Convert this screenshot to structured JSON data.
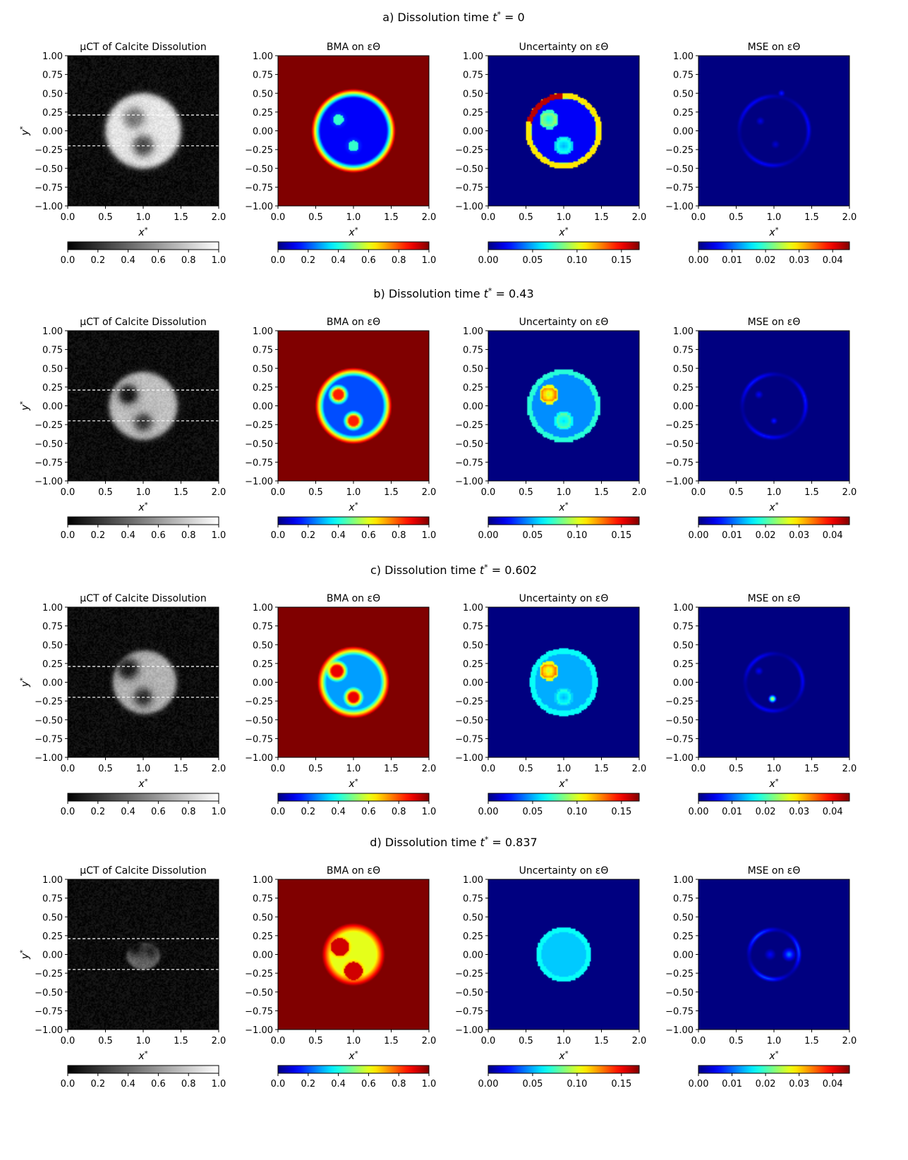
{
  "figure": {
    "rows": [
      {
        "title_prefix": "a) Dissolution time ",
        "t_value": "0",
        "mct": {
          "blobs": [
            [
              0.88,
              0.17,
              0.13,
              0.45
            ],
            [
              1.0,
              -0.2,
              0.13,
              0.28
            ]
          ],
          "outer": [
            1.0,
            0.0,
            0.5,
            0.5,
            0.9
          ]
        },
        "bma": {
          "blobs": [
            [
              0.8,
              0.15,
              0.09
            ],
            [
              1.0,
              -0.2,
              0.09
            ]
          ],
          "outer_r": 0.5,
          "level": 0.12,
          "inner": 0.18
        },
        "unc": {
          "outer_r": 0.5,
          "bg": 0.0,
          "interior": 0.02,
          "ring": 0.11,
          "hot_arc": true,
          "blobs": [
            [
              0.8,
              0.15,
              0.1,
              0.09
            ],
            [
              1.0,
              -0.2,
              0.1,
              0.07
            ]
          ]
        },
        "mse": {
          "outer_r": 0.5,
          "arcs": [
            [
              1.0,
              0.0,
              0.46,
              0.006
            ]
          ],
          "blobs": [
            [
              0.82,
              0.13,
              0.06,
              0.005
            ],
            [
              1.02,
              -0.18,
              0.06,
              0.004
            ],
            [
              1.1,
              0.5,
              0.05,
              0.008
            ]
          ]
        }
      },
      {
        "title_prefix": "b) Dissolution time ",
        "t_value": "0.43",
        "mct": {
          "blobs": [
            [
              0.8,
              0.15,
              0.12,
              0.05
            ],
            [
              1.0,
              -0.22,
              0.11,
              0.2
            ]
          ],
          "outer": [
            1.0,
            0.0,
            0.45,
            0.45,
            0.75
          ]
        },
        "bma": {
          "blobs": [
            [
              0.8,
              0.15,
              0.1
            ],
            [
              1.0,
              -0.2,
              0.1
            ]
          ],
          "outer_r": 0.45,
          "level": 0.2,
          "inner": 0.78
        },
        "unc": {
          "outer_r": 0.48,
          "bg": 0.0,
          "interior": 0.045,
          "ring": 0.07,
          "hot_arc": false,
          "blobs": [
            [
              0.8,
              0.15,
              0.1,
              0.13
            ],
            [
              1.0,
              -0.2,
              0.1,
              0.08
            ]
          ]
        },
        "mse": {
          "outer_r": 0.45,
          "arcs": [
            [
              1.0,
              0.0,
              0.42,
              0.007
            ]
          ],
          "blobs": [
            [
              0.8,
              0.15,
              0.06,
              0.006
            ],
            [
              1.0,
              -0.2,
              0.05,
              0.008
            ]
          ]
        }
      },
      {
        "title_prefix": "c) Dissolution time ",
        "t_value": "0.602",
        "mct": {
          "blobs": [
            [
              0.8,
              0.18,
              0.13,
              0.1
            ],
            [
              1.0,
              -0.2,
              0.11,
              0.15
            ]
          ],
          "outer": [
            1.02,
            0.0,
            0.42,
            0.42,
            0.7
          ]
        },
        "bma": {
          "blobs": [
            [
              0.78,
              0.15,
              0.11
            ],
            [
              1.0,
              -0.2,
              0.1
            ]
          ],
          "outer_r": 0.42,
          "level": 0.28,
          "inner": 0.85
        },
        "unc": {
          "outer_r": 0.45,
          "bg": 0.0,
          "interior": 0.05,
          "ring": 0.065,
          "hot_arc": false,
          "blobs": [
            [
              0.8,
              0.15,
              0.1,
              0.13
            ],
            [
              1.0,
              -0.2,
              0.1,
              0.07
            ]
          ]
        },
        "mse": {
          "outer_r": 0.4,
          "arcs": [
            [
              1.0,
              0.0,
              0.38,
              0.006
            ]
          ],
          "blobs": [
            [
              0.98,
              -0.22,
              0.06,
              0.03
            ],
            [
              0.8,
              0.15,
              0.06,
              0.006
            ]
          ]
        }
      },
      {
        "title_prefix": "d) Dissolution time ",
        "t_value": "0.837",
        "mct": {
          "blobs": [
            [
              0.9,
              0.1,
              0.1,
              0.05
            ],
            [
              1.1,
              0.05,
              0.08,
              0.12
            ]
          ],
          "outer": [
            1.0,
            -0.02,
            0.22,
            0.18,
            0.4
          ]
        },
        "bma": {
          "blobs": [
            [
              0.82,
              0.1,
              0.12
            ],
            [
              1.0,
              -0.22,
              0.12
            ]
          ],
          "outer_r": 0.36,
          "level": 0.6,
          "inner": 0.78
        },
        "unc": {
          "outer_r": 0.36,
          "bg": 0.0,
          "interior": 0.055,
          "ring": 0.065,
          "hot_arc": false,
          "blobs": [
            [
              1.0,
              -0.2,
              0.1,
              0.04
            ]
          ]
        },
        "mse": {
          "outer_r": 0.36,
          "arcs": [
            [
              1.0,
              0.0,
              0.33,
              0.01
            ]
          ],
          "blobs": [
            [
              1.2,
              0.0,
              0.1,
              0.012
            ],
            [
              0.95,
              0.0,
              0.08,
              0.006
            ]
          ]
        }
      }
    ]
  },
  "chart_data": [
    {
      "type": "heatmap",
      "row": "a",
      "panels": [
        {
          "title": "μCT of Calcite Dissolution",
          "xlabel": "x*",
          "ylabel": "y*",
          "xlim": [
            0,
            2
          ],
          "ylim": [
            -1,
            1
          ],
          "colormap": "gray",
          "clim": [
            0,
            1
          ],
          "colorbar_ticks": [
            "0.0",
            "0.2",
            "0.4",
            "0.6",
            "0.8",
            "1.0"
          ],
          "dashed_lines_y": [
            0.21,
            -0.2
          ]
        },
        {
          "title": "BMA on εΘ",
          "xlabel": "x*",
          "xlim": [
            0,
            2
          ],
          "ylim": [
            -1,
            1
          ],
          "colormap": "jet",
          "clim": [
            0,
            1
          ],
          "colorbar_ticks": [
            "0.0",
            "0.2",
            "0.4",
            "0.6",
            "0.8",
            "1.0"
          ]
        },
        {
          "title": "Uncertainty on εΘ",
          "xlabel": "x*",
          "xlim": [
            0,
            2
          ],
          "ylim": [
            -1,
            1
          ],
          "colormap": "jet",
          "clim": [
            0,
            0.17
          ],
          "colorbar_ticks": [
            "0.00",
            "0.05",
            "0.10",
            "0.15"
          ]
        },
        {
          "title": "MSE on εΘ",
          "xlabel": "x*",
          "xlim": [
            0,
            2
          ],
          "ylim": [
            -1,
            1
          ],
          "colormap": "jet",
          "clim": [
            0,
            0.045
          ],
          "colorbar_ticks": [
            "0.00",
            "0.01",
            "0.02",
            "0.03",
            "0.04"
          ]
        }
      ]
    },
    {
      "type": "heatmap",
      "row": "b",
      "panels": [
        {
          "title": "μCT of Calcite Dissolution",
          "xlabel": "x*",
          "ylabel": "y*",
          "xlim": [
            0,
            2
          ],
          "ylim": [
            -1,
            1
          ],
          "colormap": "gray",
          "clim": [
            0,
            1
          ],
          "colorbar_ticks": [
            "0.0",
            "0.2",
            "0.4",
            "0.6",
            "0.8",
            "1.0"
          ],
          "dashed_lines_y": [
            0.21,
            -0.2
          ]
        },
        {
          "title": "BMA on εΘ",
          "xlabel": "x*",
          "xlim": [
            0,
            2
          ],
          "ylim": [
            -1,
            1
          ],
          "colormap": "jet",
          "clim": [
            0,
            1
          ],
          "colorbar_ticks": [
            "0.0",
            "0.2",
            "0.4",
            "0.6",
            "0.8",
            "1.0"
          ]
        },
        {
          "title": "Uncertainty on εΘ",
          "xlabel": "x*",
          "xlim": [
            0,
            2
          ],
          "ylim": [
            -1,
            1
          ],
          "colormap": "jet",
          "clim": [
            0,
            0.17
          ],
          "colorbar_ticks": [
            "0.00",
            "0.05",
            "0.10",
            "0.15"
          ]
        },
        {
          "title": "MSE on εΘ",
          "xlabel": "x*",
          "xlim": [
            0,
            2
          ],
          "ylim": [
            -1,
            1
          ],
          "colormap": "jet",
          "clim": [
            0,
            0.045
          ],
          "colorbar_ticks": [
            "0.00",
            "0.01",
            "0.02",
            "0.03",
            "0.04"
          ]
        }
      ]
    },
    {
      "type": "heatmap",
      "row": "c",
      "panels": [
        {
          "title": "μCT of Calcite Dissolution",
          "xlabel": "x*",
          "ylabel": "y*",
          "xlim": [
            0,
            2
          ],
          "ylim": [
            -1,
            1
          ],
          "colormap": "gray",
          "clim": [
            0,
            1
          ],
          "colorbar_ticks": [
            "0.0",
            "0.2",
            "0.4",
            "0.6",
            "0.8",
            "1.0"
          ],
          "dashed_lines_y": [
            0.21,
            -0.2
          ]
        },
        {
          "title": "BMA on εΘ",
          "xlabel": "x*",
          "xlim": [
            0,
            2
          ],
          "ylim": [
            -1,
            1
          ],
          "colormap": "jet",
          "clim": [
            0,
            1
          ],
          "colorbar_ticks": [
            "0.0",
            "0.2",
            "0.4",
            "0.6",
            "0.8",
            "1.0"
          ]
        },
        {
          "title": "Uncertainty on εΘ",
          "xlabel": "x*",
          "xlim": [
            0,
            2
          ],
          "ylim": [
            -1,
            1
          ],
          "colormap": "jet",
          "clim": [
            0,
            0.17
          ],
          "colorbar_ticks": [
            "0.00",
            "0.05",
            "0.10",
            "0.15"
          ]
        },
        {
          "title": "MSE on εΘ",
          "xlabel": "x*",
          "xlim": [
            0,
            2
          ],
          "ylim": [
            -1,
            1
          ],
          "colormap": "jet",
          "clim": [
            0,
            0.045
          ],
          "colorbar_ticks": [
            "0.00",
            "0.01",
            "0.02",
            "0.03",
            "0.04"
          ]
        }
      ]
    },
    {
      "type": "heatmap",
      "row": "d",
      "panels": [
        {
          "title": "μCT of Calcite Dissolution",
          "xlabel": "x*",
          "ylabel": "y*",
          "xlim": [
            0,
            2
          ],
          "ylim": [
            -1,
            1
          ],
          "colormap": "gray",
          "clim": [
            0,
            1
          ],
          "colorbar_ticks": [
            "0.0",
            "0.2",
            "0.4",
            "0.6",
            "0.8",
            "1.0"
          ],
          "dashed_lines_y": [
            0.21,
            -0.2
          ]
        },
        {
          "title": "BMA on εΘ",
          "xlabel": "x*",
          "xlim": [
            0,
            2
          ],
          "ylim": [
            -1,
            1
          ],
          "colormap": "jet",
          "clim": [
            0,
            1
          ],
          "colorbar_ticks": [
            "0.0",
            "0.2",
            "0.4",
            "0.6",
            "0.8",
            "1.0"
          ]
        },
        {
          "title": "Uncertainty on εΘ",
          "xlabel": "x*",
          "xlim": [
            0,
            2
          ],
          "ylim": [
            -1,
            1
          ],
          "colormap": "jet",
          "clim": [
            0,
            0.17
          ],
          "colorbar_ticks": [
            "0.00",
            "0.05",
            "0.10",
            "0.15"
          ]
        },
        {
          "title": "MSE on εΘ",
          "xlabel": "x*",
          "xlim": [
            0,
            2
          ],
          "ylim": [
            -1,
            1
          ],
          "colormap": "jet",
          "clim": [
            0,
            0.045
          ],
          "colorbar_ticks": [
            "0.00",
            "0.01",
            "0.02",
            "0.03",
            "0.04"
          ]
        }
      ]
    }
  ],
  "axes": {
    "x_ticks": [
      "0.0",
      "0.5",
      "1.0",
      "1.5",
      "2.0"
    ],
    "y_ticks": [
      "1.00",
      "0.75",
      "0.50",
      "0.25",
      "0.00",
      "−0.25",
      "−0.50",
      "−0.75",
      "−1.00"
    ]
  }
}
